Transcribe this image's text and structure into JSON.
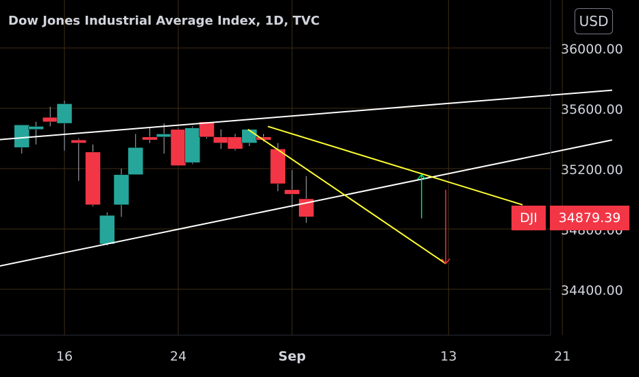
{
  "header": {
    "title": "Dow Jones Industrial Average Index, 1D, TVC",
    "currency": "USD"
  },
  "price_badge": {
    "symbol": "DJI",
    "value": "34879.39"
  },
  "colors": {
    "up": "#26a69a",
    "down": "#f23645",
    "grid": "#3f2e16",
    "trendline": "#ffffff",
    "channel": "#ffff33",
    "target_up": "#00e676",
    "target_down": "#f23645"
  },
  "chart_data": {
    "type": "candlestick",
    "title": "Dow Jones Industrial Average Index, 1D, TVC",
    "ylim": [
      34250,
      36150
    ],
    "y_ticks": [
      {
        "value": 36000,
        "label": "36000.00"
      },
      {
        "value": 35600,
        "label": "35600.00"
      },
      {
        "value": 35200,
        "label": "35200.00"
      },
      {
        "value": 34800,
        "label": "34800.00"
      },
      {
        "value": 34400,
        "label": "34400.00"
      }
    ],
    "x_ticks": [
      {
        "day": 16,
        "label": "16",
        "bold": false
      },
      {
        "day": 24,
        "label": "24",
        "bold": false
      },
      {
        "day": 32,
        "label": "Sep",
        "bold": true
      },
      {
        "day": 43,
        "label": "13",
        "bold": false
      },
      {
        "day": 51,
        "label": "21",
        "bold": false
      }
    ],
    "grid": true,
    "candles": [
      {
        "day": 13,
        "open": 35340,
        "high": 35490,
        "low": 35300,
        "close": 35490
      },
      {
        "day": 14,
        "open": 35460,
        "high": 35510,
        "low": 35360,
        "close": 35480
      },
      {
        "day": 15,
        "open": 35540,
        "high": 35610,
        "low": 35480,
        "close": 35510
      },
      {
        "day": 16,
        "open": 35500,
        "high": 35650,
        "low": 35320,
        "close": 35630
      },
      {
        "day": 17,
        "open": 35390,
        "high": 35400,
        "low": 35120,
        "close": 35370
      },
      {
        "day": 18,
        "open": 35310,
        "high": 35360,
        "low": 34950,
        "close": 34960
      },
      {
        "day": 19,
        "open": 34700,
        "high": 34910,
        "low": 34690,
        "close": 34890
      },
      {
        "day": 20,
        "open": 34960,
        "high": 35200,
        "low": 34880,
        "close": 35160
      },
      {
        "day": 21,
        "open": 35160,
        "high": 35430,
        "low": 35160,
        "close": 35340
      },
      {
        "day": 22,
        "open": 35410,
        "high": 35470,
        "low": 35370,
        "close": 35390
      },
      {
        "day": 23,
        "open": 35410,
        "high": 35500,
        "low": 35300,
        "close": 35430
      },
      {
        "day": 24,
        "open": 35460,
        "high": 35470,
        "low": 35220,
        "close": 35220
      },
      {
        "day": 25,
        "open": 35240,
        "high": 35480,
        "low": 35230,
        "close": 35470
      },
      {
        "day": 26,
        "open": 35510,
        "high": 35510,
        "low": 35400,
        "close": 35410
      },
      {
        "day": 27,
        "open": 35410,
        "high": 35460,
        "low": 35330,
        "close": 35370
      },
      {
        "day": 28,
        "open": 35410,
        "high": 35430,
        "low": 35320,
        "close": 35330
      },
      {
        "day": 29,
        "open": 35370,
        "high": 35460,
        "low": 35350,
        "close": 35460
      },
      {
        "day": 30,
        "open": 35410,
        "high": 35430,
        "low": 35380,
        "close": 35390
      },
      {
        "day": 31,
        "open": 35330,
        "high": 35370,
        "low": 35050,
        "close": 35100
      },
      {
        "day": 32,
        "open": 35060,
        "high": 35190,
        "low": 34940,
        "close": 35030
      },
      {
        "day": 33,
        "open": 35000,
        "high": 35150,
        "low": 34840,
        "close": 34880
      }
    ],
    "trendlines": [
      {
        "color": "trendline",
        "points": [
          [
            9.8,
            35380
          ],
          [
            54.5,
            35720
          ]
        ]
      },
      {
        "color": "trendline",
        "points": [
          [
            10.2,
            34530
          ],
          [
            54.5,
            35390
          ]
        ]
      },
      {
        "color": "channel",
        "points": [
          [
            30.3,
            35480
          ],
          [
            48.2,
            34960
          ]
        ]
      },
      {
        "color": "channel",
        "points": [
          [
            28.9,
            35460
          ],
          [
            42.8,
            34570
          ]
        ]
      }
    ],
    "arrows": [
      {
        "color": "target_up",
        "day": 41.1,
        "from": 34870,
        "to": 35160
      },
      {
        "color": "target_down",
        "day": 42.8,
        "from": 35060,
        "to": 34570
      }
    ]
  }
}
